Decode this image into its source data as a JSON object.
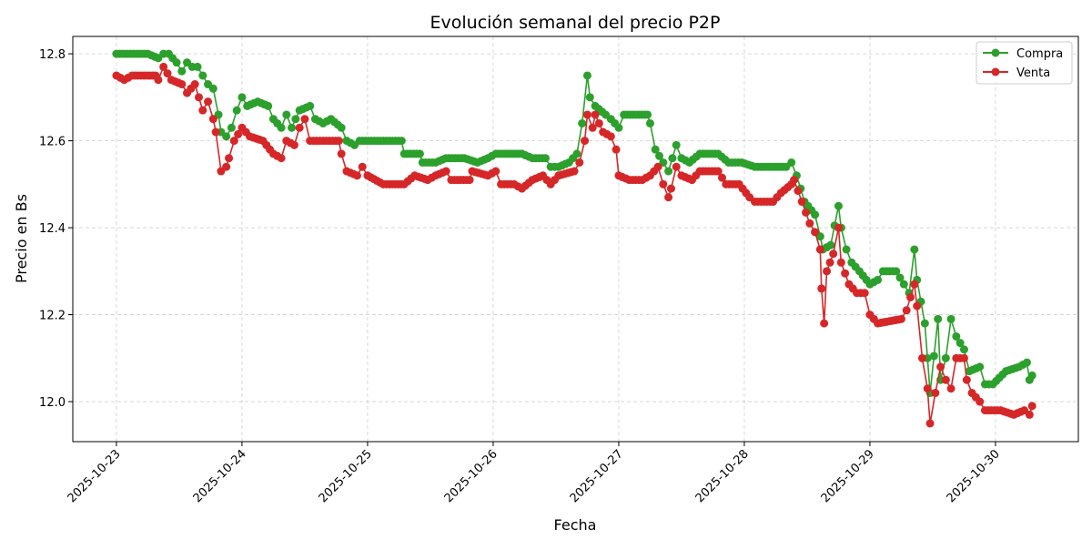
{
  "chart_data": {
    "type": "line",
    "title": "Evolución semanal del precio P2P",
    "xlabel": "Fecha",
    "ylabel": "Precio en Bs",
    "xlim": [
      "2025-10-22 15:40",
      "2025-10-30 15:50"
    ],
    "ylim": [
      11.908,
      12.84
    ],
    "x_ticks": [
      "2025-10-23",
      "2025-10-24",
      "2025-10-25",
      "2025-10-26",
      "2025-10-27",
      "2025-10-28",
      "2025-10-29",
      "2025-10-30"
    ],
    "y_ticks": [
      "12.0",
      "12.2",
      "12.4",
      "12.6",
      "12.8"
    ],
    "grid": true,
    "legend_position": "top-right",
    "series": [
      {
        "name": "Compra",
        "color": "#2ca02c",
        "marker": "circle",
        "points": [
          [
            "2025-10-23 00:00",
            12.8
          ],
          [
            "2025-10-23 06:00",
            12.8
          ],
          [
            "2025-10-23 08:00",
            12.79
          ],
          [
            "2025-10-23 09:00",
            12.8
          ],
          [
            "2025-10-23 10:00",
            12.8
          ],
          [
            "2025-10-23 11:30",
            12.78
          ],
          [
            "2025-10-23 12:30",
            12.76
          ],
          [
            "2025-10-23 13:30",
            12.78
          ],
          [
            "2025-10-23 14:30",
            12.77
          ],
          [
            "2025-10-23 15:30",
            12.77
          ],
          [
            "2025-10-23 16:30",
            12.75
          ],
          [
            "2025-10-23 17:30",
            12.73
          ],
          [
            "2025-10-23 18:30",
            12.72
          ],
          [
            "2025-10-23 19:30",
            12.66
          ],
          [
            "2025-10-23 20:00",
            12.62
          ],
          [
            "2025-10-23 21:00",
            12.61
          ],
          [
            "2025-10-23 22:00",
            12.63
          ],
          [
            "2025-10-23 23:00",
            12.67
          ],
          [
            "2025-10-24 00:00",
            12.7
          ],
          [
            "2025-10-24 01:00",
            12.68
          ],
          [
            "2025-10-24 03:00",
            12.69
          ],
          [
            "2025-10-24 05:00",
            12.68
          ],
          [
            "2025-10-24 06:00",
            12.65
          ],
          [
            "2025-10-24 07:30",
            12.63
          ],
          [
            "2025-10-24 08:30",
            12.66
          ],
          [
            "2025-10-24 09:30",
            12.63
          ],
          [
            "2025-10-24 11:00",
            12.67
          ],
          [
            "2025-10-24 13:00",
            12.68
          ],
          [
            "2025-10-24 14:00",
            12.65
          ],
          [
            "2025-10-24 15:30",
            12.64
          ],
          [
            "2025-10-24 17:00",
            12.65
          ],
          [
            "2025-10-24 19:00",
            12.63
          ],
          [
            "2025-10-24 20:00",
            12.6
          ],
          [
            "2025-10-24 21:30",
            12.59
          ],
          [
            "2025-10-24 22:30",
            12.6
          ],
          [
            "2025-10-25 03:00",
            12.6
          ],
          [
            "2025-10-25 06:30",
            12.6
          ],
          [
            "2025-10-25 07:00",
            12.57
          ],
          [
            "2025-10-25 10:00",
            12.57
          ],
          [
            "2025-10-25 10:30",
            12.55
          ],
          [
            "2025-10-25 13:00",
            12.55
          ],
          [
            "2025-10-25 15:00",
            12.56
          ],
          [
            "2025-10-25 18:30",
            12.56
          ],
          [
            "2025-10-25 21:00",
            12.55
          ],
          [
            "2025-10-25 23:00",
            12.56
          ],
          [
            "2025-10-26 00:30",
            12.57
          ],
          [
            "2025-10-26 05:30",
            12.57
          ],
          [
            "2025-10-26 07:30",
            12.56
          ],
          [
            "2025-10-26 10:00",
            12.56
          ],
          [
            "2025-10-26 11:00",
            12.54
          ],
          [
            "2025-10-26 12:30",
            12.54
          ],
          [
            "2025-10-26 14:30",
            12.55
          ],
          [
            "2025-10-26 16:00",
            12.57
          ],
          [
            "2025-10-26 17:00",
            12.64
          ],
          [
            "2025-10-26 18:00",
            12.75
          ],
          [
            "2025-10-26 18:30",
            12.7
          ],
          [
            "2025-10-26 19:30",
            12.68
          ],
          [
            "2025-10-26 21:30",
            12.66
          ],
          [
            "2025-10-26 22:30",
            12.65
          ],
          [
            "2025-10-27 00:00",
            12.63
          ],
          [
            "2025-10-27 01:00",
            12.66
          ],
          [
            "2025-10-27 05:30",
            12.66
          ],
          [
            "2025-10-27 06:00",
            12.64
          ],
          [
            "2025-10-27 07:00",
            12.58
          ],
          [
            "2025-10-27 08:30",
            12.55
          ],
          [
            "2025-10-27 09:30",
            12.53
          ],
          [
            "2025-10-27 11:00",
            12.59
          ],
          [
            "2025-10-27 12:00",
            12.56
          ],
          [
            "2025-10-27 13:30",
            12.55
          ],
          [
            "2025-10-27 15:30",
            12.57
          ],
          [
            "2025-10-27 19:00",
            12.57
          ],
          [
            "2025-10-27 21:00",
            12.55
          ],
          [
            "2025-10-27 23:30",
            12.55
          ],
          [
            "2025-10-28 02:00",
            12.54
          ],
          [
            "2025-10-28 08:00",
            12.54
          ],
          [
            "2025-10-28 09:00",
            12.55
          ],
          [
            "2025-10-28 10:00",
            12.52
          ],
          [
            "2025-10-28 11:30",
            12.46
          ],
          [
            "2025-10-28 13:30",
            12.43
          ],
          [
            "2025-10-28 14:30",
            12.38
          ],
          [
            "2025-10-28 15:00",
            12.35
          ],
          [
            "2025-10-28 16:30",
            12.36
          ],
          [
            "2025-10-28 18:00",
            12.45
          ],
          [
            "2025-10-28 18:30",
            12.4
          ],
          [
            "2025-10-28 19:30",
            12.35
          ],
          [
            "2025-10-28 20:30",
            12.32
          ],
          [
            "2025-10-28 22:00",
            12.3
          ],
          [
            "2025-10-29 00:00",
            12.27
          ],
          [
            "2025-10-29 01:30",
            12.28
          ],
          [
            "2025-10-29 02:30",
            12.3
          ],
          [
            "2025-10-29 05:00",
            12.3
          ],
          [
            "2025-10-29 06:30",
            12.27
          ],
          [
            "2025-10-29 07:30",
            12.25
          ],
          [
            "2025-10-29 08:30",
            12.35
          ],
          [
            "2025-10-29 09:00",
            12.28
          ],
          [
            "2025-10-29 10:30",
            12.18
          ],
          [
            "2025-10-29 11:00",
            12.1
          ],
          [
            "2025-10-29 11:30",
            12.02
          ],
          [
            "2025-10-29 13:00",
            12.19
          ],
          [
            "2025-10-29 13:30",
            12.05
          ],
          [
            "2025-10-29 14:30",
            12.1
          ],
          [
            "2025-10-29 15:30",
            12.19
          ],
          [
            "2025-10-29 16:30",
            12.15
          ],
          [
            "2025-10-29 18:00",
            12.12
          ],
          [
            "2025-10-29 19:00",
            12.07
          ],
          [
            "2025-10-29 21:00",
            12.08
          ],
          [
            "2025-10-29 22:00",
            12.04
          ],
          [
            "2025-10-29 23:30",
            12.04
          ],
          [
            "2025-10-30 02:00",
            12.07
          ],
          [
            "2025-10-30 04:30",
            12.08
          ],
          [
            "2025-10-30 06:00",
            12.09
          ],
          [
            "2025-10-30 06:30",
            12.05
          ],
          [
            "2025-10-30 07:00",
            12.06
          ]
        ]
      },
      {
        "name": "Venta",
        "color": "#d62728",
        "marker": "circle",
        "points": [
          [
            "2025-10-23 00:00",
            12.75
          ],
          [
            "2025-10-23 01:30",
            12.74
          ],
          [
            "2025-10-23 03:00",
            12.75
          ],
          [
            "2025-10-23 07:30",
            12.75
          ],
          [
            "2025-10-23 08:00",
            12.74
          ],
          [
            "2025-10-23 09:00",
            12.77
          ],
          [
            "2025-10-23 10:30",
            12.74
          ],
          [
            "2025-10-23 12:30",
            12.73
          ],
          [
            "2025-10-23 13:30",
            12.71
          ],
          [
            "2025-10-23 15:00",
            12.73
          ],
          [
            "2025-10-23 16:30",
            12.67
          ],
          [
            "2025-10-23 17:30",
            12.69
          ],
          [
            "2025-10-23 18:30",
            12.65
          ],
          [
            "2025-10-23 19:00",
            12.62
          ],
          [
            "2025-10-23 20:00",
            12.53
          ],
          [
            "2025-10-23 21:00",
            12.54
          ],
          [
            "2025-10-23 21:30",
            12.56
          ],
          [
            "2025-10-23 22:30",
            12.6
          ],
          [
            "2025-10-24 00:00",
            12.63
          ],
          [
            "2025-10-24 01:30",
            12.61
          ],
          [
            "2025-10-24 04:00",
            12.6
          ],
          [
            "2025-10-24 06:00",
            12.57
          ],
          [
            "2025-10-24 07:30",
            12.56
          ],
          [
            "2025-10-24 08:30",
            12.6
          ],
          [
            "2025-10-24 10:00",
            12.59
          ],
          [
            "2025-10-24 11:00",
            12.63
          ],
          [
            "2025-10-24 12:00",
            12.65
          ],
          [
            "2025-10-24 13:00",
            12.6
          ],
          [
            "2025-10-24 15:30",
            12.6
          ],
          [
            "2025-10-24 18:30",
            12.6
          ],
          [
            "2025-10-24 19:00",
            12.57
          ],
          [
            "2025-10-24 20:00",
            12.53
          ],
          [
            "2025-10-24 22:00",
            12.52
          ],
          [
            "2025-10-24 23:00",
            12.54
          ],
          [
            "2025-10-25 00:00",
            12.52
          ],
          [
            "2025-10-25 03:00",
            12.5
          ],
          [
            "2025-10-25 07:00",
            12.5
          ],
          [
            "2025-10-25 09:00",
            12.52
          ],
          [
            "2025-10-25 11:30",
            12.51
          ],
          [
            "2025-10-25 13:00",
            12.52
          ],
          [
            "2025-10-25 15:00",
            12.53
          ],
          [
            "2025-10-25 16:00",
            12.51
          ],
          [
            "2025-10-25 19:30",
            12.51
          ],
          [
            "2025-10-25 20:00",
            12.53
          ],
          [
            "2025-10-25 23:00",
            12.52
          ],
          [
            "2025-10-26 00:30",
            12.53
          ],
          [
            "2025-10-26 01:30",
            12.5
          ],
          [
            "2025-10-26 04:00",
            12.5
          ],
          [
            "2025-10-26 05:30",
            12.49
          ],
          [
            "2025-10-26 07:30",
            12.51
          ],
          [
            "2025-10-26 09:30",
            12.52
          ],
          [
            "2025-10-26 11:00",
            12.5
          ],
          [
            "2025-10-26 12:30",
            12.52
          ],
          [
            "2025-10-26 15:30",
            12.53
          ],
          [
            "2025-10-26 16:30",
            12.55
          ],
          [
            "2025-10-26 17:30",
            12.6
          ],
          [
            "2025-10-26 18:00",
            12.66
          ],
          [
            "2025-10-26 19:00",
            12.63
          ],
          [
            "2025-10-26 19:30",
            12.66
          ],
          [
            "2025-10-26 21:00",
            12.62
          ],
          [
            "2025-10-26 22:30",
            12.61
          ],
          [
            "2025-10-26 23:30",
            12.58
          ],
          [
            "2025-10-27 00:00",
            12.52
          ],
          [
            "2025-10-27 02:00",
            12.51
          ],
          [
            "2025-10-27 04:30",
            12.51
          ],
          [
            "2025-10-27 06:00",
            12.52
          ],
          [
            "2025-10-27 07:30",
            12.54
          ],
          [
            "2025-10-27 08:30",
            12.5
          ],
          [
            "2025-10-27 09:30",
            12.47
          ],
          [
            "2025-10-27 10:00",
            12.49
          ],
          [
            "2025-10-27 11:00",
            12.54
          ],
          [
            "2025-10-27 12:00",
            12.52
          ],
          [
            "2025-10-27 14:00",
            12.51
          ],
          [
            "2025-10-27 15:30",
            12.53
          ],
          [
            "2025-10-27 19:00",
            12.53
          ],
          [
            "2025-10-27 20:30",
            12.5
          ],
          [
            "2025-10-27 23:00",
            12.5
          ],
          [
            "2025-10-28 01:00",
            12.47
          ],
          [
            "2025-10-28 02:00",
            12.46
          ],
          [
            "2025-10-28 05:30",
            12.46
          ],
          [
            "2025-10-28 07:00",
            12.48
          ],
          [
            "2025-10-28 09:00",
            12.5
          ],
          [
            "2025-10-28 09:30",
            12.51
          ],
          [
            "2025-10-28 11:00",
            12.46
          ],
          [
            "2025-10-28 12:30",
            12.41
          ],
          [
            "2025-10-28 13:30",
            12.39
          ],
          [
            "2025-10-28 14:30",
            12.35
          ],
          [
            "2025-10-28 14:45",
            12.26
          ],
          [
            "2025-10-28 15:15",
            12.18
          ],
          [
            "2025-10-28 15:45",
            12.3
          ],
          [
            "2025-10-28 17:00",
            12.34
          ],
          [
            "2025-10-28 18:00",
            12.4
          ],
          [
            "2025-10-28 18:30",
            12.32
          ],
          [
            "2025-10-28 20:00",
            12.27
          ],
          [
            "2025-10-28 21:30",
            12.25
          ],
          [
            "2025-10-28 23:00",
            12.25
          ],
          [
            "2025-10-29 00:00",
            12.2
          ],
          [
            "2025-10-29 01:30",
            12.18
          ],
          [
            "2025-10-29 06:00",
            12.19
          ],
          [
            "2025-10-29 07:00",
            12.21
          ],
          [
            "2025-10-29 08:30",
            12.27
          ],
          [
            "2025-10-29 09:00",
            12.22
          ],
          [
            "2025-10-29 10:00",
            12.1
          ],
          [
            "2025-10-29 11:00",
            12.03
          ],
          [
            "2025-10-29 11:30",
            11.95
          ],
          [
            "2025-10-29 12:30",
            12.02
          ],
          [
            "2025-10-29 13:30",
            12.08
          ],
          [
            "2025-10-29 14:30",
            12.05
          ],
          [
            "2025-10-29 15:30",
            12.03
          ],
          [
            "2025-10-29 16:30",
            12.1
          ],
          [
            "2025-10-29 18:00",
            12.1
          ],
          [
            "2025-10-29 18:30",
            12.05
          ],
          [
            "2025-10-29 19:30",
            12.02
          ],
          [
            "2025-10-29 21:00",
            12.0
          ],
          [
            "2025-10-29 22:00",
            11.98
          ],
          [
            "2025-10-30 01:00",
            11.98
          ],
          [
            "2025-10-30 03:30",
            11.97
          ],
          [
            "2025-10-30 05:30",
            11.98
          ],
          [
            "2025-10-30 06:30",
            11.97
          ],
          [
            "2025-10-30 07:00",
            11.99
          ]
        ]
      }
    ]
  }
}
